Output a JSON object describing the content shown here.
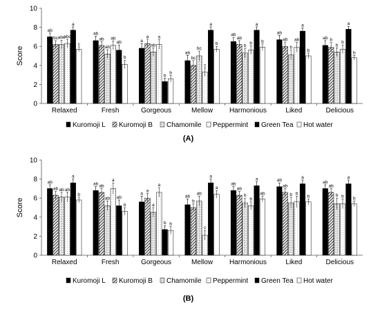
{
  "chart_data": [
    {
      "panel_label": "(A)",
      "type": "bar",
      "ylabel": "Score",
      "ylim": [
        0,
        10
      ],
      "yticks": [
        0,
        2,
        4,
        6,
        8,
        10
      ],
      "categories": [
        "Relaxed",
        "Fresh",
        "Gorgeous",
        "Mellow",
        "Harmonious",
        "Liked",
        "Delicious"
      ],
      "legend_position": "bottom",
      "series": [
        {
          "name": "Kuromoji L",
          "pattern": "solid-black",
          "values": [
            7.0,
            6.6,
            5.8,
            4.5,
            6.5,
            6.7,
            6.1
          ],
          "errors": [
            0.4,
            0.45,
            0.5,
            0.55,
            0.45,
            0.45,
            0.5
          ],
          "letters": [
            "ab",
            "ab",
            "a",
            "ab",
            "ab",
            "ab",
            "ab"
          ]
        },
        {
          "name": "Kuromoji B",
          "pattern": "hatch",
          "values": [
            6.2,
            6.1,
            6.3,
            4.0,
            6.2,
            6.0,
            5.9
          ],
          "errors": [
            0.4,
            0.4,
            0.45,
            0.5,
            0.4,
            0.45,
            0.5
          ],
          "letters": [
            "bc",
            "ab",
            "a",
            "bc",
            "ab",
            "ab",
            "b"
          ]
        },
        {
          "name": "Chamomile",
          "pattern": "dots",
          "values": [
            6.2,
            5.2,
            5.4,
            5.0,
            5.3,
            5.1,
            5.4
          ],
          "errors": [
            0.45,
            0.45,
            0.45,
            0.5,
            0.5,
            0.5,
            0.45
          ],
          "letters": [
            "abc",
            "ab",
            "ab",
            "bc",
            "b",
            "b",
            "b"
          ]
        },
        {
          "name": "Peppermint",
          "pattern": "light-dots",
          "values": [
            6.3,
            6.1,
            6.2,
            3.3,
            5.6,
            5.9,
            5.7
          ],
          "errors": [
            0.45,
            0.45,
            0.5,
            0.45,
            0.45,
            0.5,
            0.45
          ],
          "letters": [
            "abc",
            "ab",
            "a",
            "c",
            "b",
            "ab",
            "b"
          ]
        },
        {
          "name": "Green Tea",
          "pattern": "solid-black",
          "values": [
            7.7,
            5.6,
            2.3,
            7.7,
            7.7,
            7.6,
            7.8
          ],
          "errors": [
            0.35,
            0.55,
            0.35,
            0.35,
            0.35,
            0.35,
            0.3
          ],
          "letters": [
            "a",
            "ab",
            "b",
            "a",
            "a",
            "a",
            "a"
          ]
        },
        {
          "name": "Hot water",
          "pattern": "white",
          "values": [
            5.7,
            4.1,
            2.6,
            5.7,
            5.9,
            5.0,
            4.8
          ],
          "errors": [
            0.25,
            0.45,
            0.35,
            0.3,
            0.35,
            0.3,
            0.25
          ],
          "letters": [
            "c",
            "b",
            "b",
            "b",
            "b",
            "b",
            "b"
          ]
        }
      ]
    },
    {
      "panel_label": "(B)",
      "type": "bar",
      "ylabel": "Score",
      "ylim": [
        0,
        10
      ],
      "yticks": [
        0,
        2,
        4,
        6,
        8,
        10
      ],
      "categories": [
        "Relaxed",
        "Fresh",
        "Gorgeous",
        "Mellow",
        "Harmonious",
        "Liked",
        "Delicious"
      ],
      "legend_position": "bottom",
      "series": [
        {
          "name": "Kuromoji L",
          "pattern": "solid-black",
          "values": [
            7.0,
            6.8,
            5.6,
            5.3,
            6.8,
            7.2,
            7.0
          ],
          "errors": [
            0.4,
            0.4,
            0.6,
            0.6,
            0.4,
            0.4,
            0.4
          ],
          "letters": [
            "ab",
            "ab",
            "a",
            "ab",
            "ab",
            "ab",
            "ab"
          ]
        },
        {
          "name": "Kuromoji B",
          "pattern": "hatch",
          "values": [
            6.3,
            6.6,
            6.0,
            5.0,
            6.3,
            6.6,
            6.6
          ],
          "errors": [
            0.4,
            0.4,
            0.5,
            0.4,
            0.4,
            0.4,
            0.4
          ],
          "letters": [
            "ab",
            "ab",
            "a",
            "b",
            "ab",
            "ab",
            "ab"
          ]
        },
        {
          "name": "Chamomile",
          "pattern": "dots",
          "values": [
            6.1,
            5.2,
            4.5,
            5.7,
            5.5,
            5.5,
            5.4
          ],
          "errors": [
            0.5,
            0.5,
            0.5,
            0.5,
            0.5,
            0.6,
            0.6
          ],
          "letters": [
            "ab",
            "ab",
            "a",
            "ab",
            "b",
            "b",
            "b"
          ]
        },
        {
          "name": "Peppermint",
          "pattern": "light-dots",
          "values": [
            6.1,
            7.0,
            6.6,
            2.1,
            5.2,
            5.6,
            5.4
          ],
          "errors": [
            0.5,
            0.6,
            0.5,
            0.5,
            0.4,
            0.6,
            0.5
          ],
          "letters": [
            "ab",
            "a",
            "a",
            "c",
            "b",
            "b",
            "b"
          ]
        },
        {
          "name": "Green Tea",
          "pattern": "solid-black",
          "values": [
            7.6,
            5.2,
            2.7,
            7.6,
            7.3,
            7.5,
            7.5
          ],
          "errors": [
            0.4,
            0.6,
            0.4,
            0.4,
            0.4,
            0.4,
            0.4
          ],
          "letters": [
            "a",
            "ab",
            "b",
            "a",
            "a",
            "a",
            "a"
          ]
        },
        {
          "name": "Hot water",
          "pattern": "white",
          "values": [
            5.8,
            4.6,
            2.6,
            6.4,
            5.9,
            5.6,
            5.4
          ],
          "errors": [
            0.3,
            0.4,
            0.4,
            0.4,
            0.3,
            0.3,
            0.3
          ],
          "letters": [
            "b",
            "b",
            "b",
            "a",
            "ab",
            "b",
            "b"
          ]
        }
      ]
    }
  ]
}
